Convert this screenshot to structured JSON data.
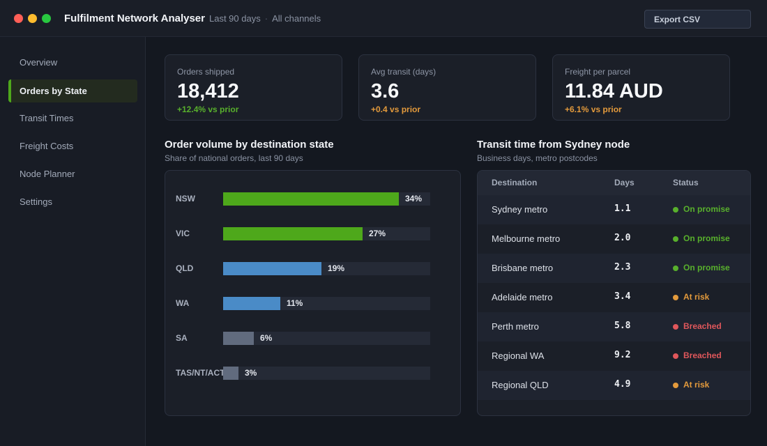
{
  "app": {
    "title": "Fulfilment Network Analyser",
    "period": "Last 90 days",
    "separator": "·",
    "channels": "All channels",
    "export_label": "Export CSV"
  },
  "sidebar": {
    "items": [
      {
        "label": "Overview",
        "active": false
      },
      {
        "label": "Orders by State",
        "active": true
      },
      {
        "label": "Transit Times",
        "active": false
      },
      {
        "label": "Freight Costs",
        "active": false
      },
      {
        "label": "Node Planner",
        "active": false
      },
      {
        "label": "Settings",
        "active": false
      }
    ]
  },
  "kpis": [
    {
      "label": "Orders shipped",
      "value": "18,412",
      "delta": "+12.4% vs prior",
      "tone": "good"
    },
    {
      "label": "Avg transit (days)",
      "value": "3.6",
      "delta": "+0.4 vs prior",
      "tone": "warn"
    },
    {
      "label": "Freight per parcel",
      "value": "11.84 AUD",
      "delta": "+6.1% vs prior",
      "tone": "warn"
    }
  ],
  "volume_section": {
    "title": "Order volume by destination state",
    "subtitle": "Share of national orders, last 90 days"
  },
  "transit_section": {
    "title": "Transit time from Sydney node",
    "subtitle": "Business days, metro postcodes"
  },
  "chart_data": {
    "type": "bar",
    "orientation": "horizontal",
    "categories": [
      "NSW",
      "VIC",
      "QLD",
      "WA",
      "SA",
      "TAS/NT/ACT"
    ],
    "values": [
      34,
      27,
      19,
      11,
      6,
      3
    ],
    "value_labels": [
      "34%",
      "27%",
      "19%",
      "11%",
      "6%",
      "3%"
    ],
    "xlim": [
      0,
      40
    ],
    "colors": [
      "#4ea81b",
      "#4ea81b",
      "#4a8bc7",
      "#4a8bc7",
      "#616b7e",
      "#616b7e"
    ],
    "title": "Order volume by destination state",
    "subtitle": "Share of national orders, last 90 days",
    "grid": false,
    "legend": "none"
  },
  "transit_table": {
    "columns": [
      "Destination",
      "Days",
      "Status"
    ],
    "rows": [
      {
        "destination": "Sydney metro",
        "days": "1.1",
        "status": "On promise",
        "tone": "good"
      },
      {
        "destination": "Melbourne metro",
        "days": "2.0",
        "status": "On promise",
        "tone": "good"
      },
      {
        "destination": "Brisbane metro",
        "days": "2.3",
        "status": "On promise",
        "tone": "good"
      },
      {
        "destination": "Adelaide metro",
        "days": "3.4",
        "status": "At risk",
        "tone": "warn"
      },
      {
        "destination": "Perth metro",
        "days": "5.8",
        "status": "Breached",
        "tone": "bad"
      },
      {
        "destination": "Regional WA",
        "days": "9.2",
        "status": "Breached",
        "tone": "bad"
      },
      {
        "destination": "Regional QLD",
        "days": "4.9",
        "status": "At risk",
        "tone": "warn"
      }
    ]
  },
  "colors": {
    "good": "#58b02c",
    "warn": "#e39a3c",
    "bad": "#e0575b",
    "accent": "#4ea81b"
  }
}
